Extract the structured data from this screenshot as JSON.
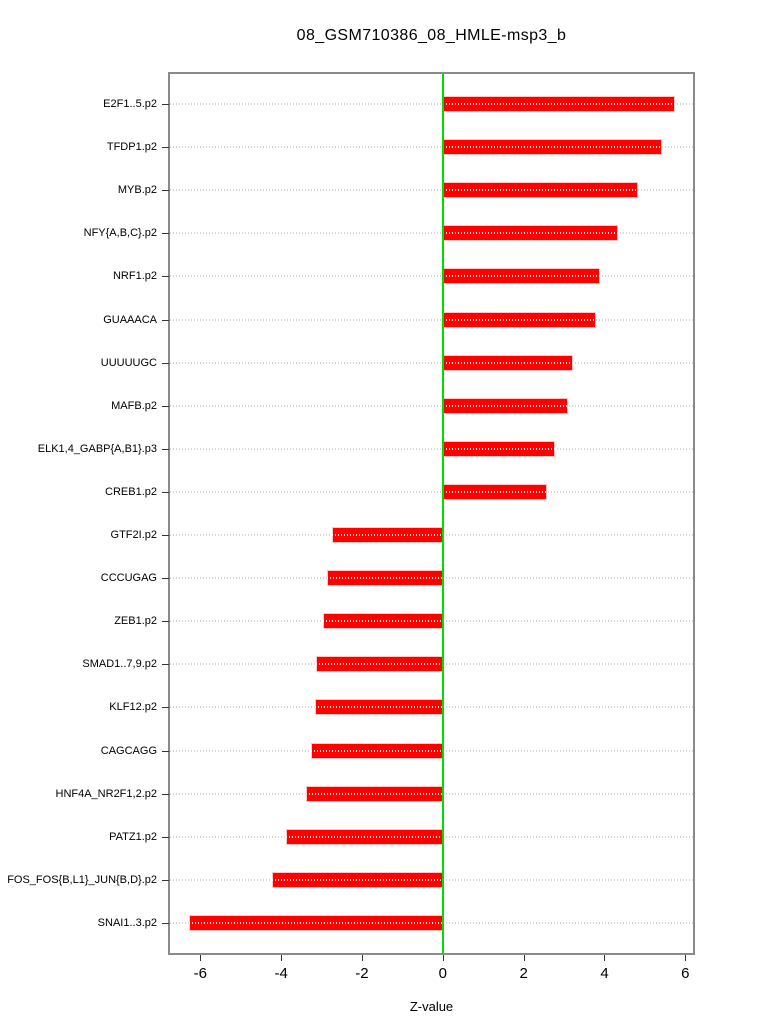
{
  "title": "08_GSM710386_08_HMLE-msp3_b",
  "x_axis": {
    "label": "Z-value",
    "tick_labels": [
      "-6",
      "-4",
      "-2",
      "0",
      "2",
      "4",
      "6"
    ]
  },
  "chart_data": {
    "type": "bar",
    "orientation": "horizontal",
    "title": "08_GSM710386_08_HMLE-msp3_b",
    "xlabel": "Z-value",
    "ylabel": "",
    "xlim": [
      -6.75,
      6.19
    ],
    "xticks": [
      -6,
      -4,
      -2,
      0,
      2,
      4,
      6
    ],
    "grid": "dotted-horizontal-per-category",
    "legend": "none",
    "zero_reference_line": 0,
    "bar_color": "#ff0000",
    "zero_line_color": "#00dd00",
    "frame_color": "#8a8a8a",
    "gridline_color": "#d4d4d4",
    "categories": [
      "E2F1..5.p2",
      "TFDP1.p2",
      "MYB.p2",
      "NFY{A,B,C}.p2",
      "NRF1.p2",
      "GUAAACA",
      "UUUUUGC",
      "MAFB.p2",
      "ELK1,4_GABP{A,B1}.p3",
      "CREB1.p2",
      "GTF2I.p2",
      "CCCUGAG",
      "ZEB1.p2",
      "SMAD1..7,9.p2",
      "KLF12.p2",
      "CAGCAGG",
      "HNF4A_NR2F1,2.p2",
      "PATZ1.p2",
      "FOS_FOS{B,L1}_JUN{B,D}.p2",
      "SNAI1..3.p2"
    ],
    "values": [
      5.75,
      5.43,
      4.83,
      4.33,
      3.89,
      3.79,
      3.23,
      3.1,
      2.78,
      2.59,
      -2.75,
      -2.87,
      -2.96,
      -3.14,
      -3.16,
      -3.27,
      -3.38,
      -3.88,
      -4.22,
      -6.28
    ]
  }
}
